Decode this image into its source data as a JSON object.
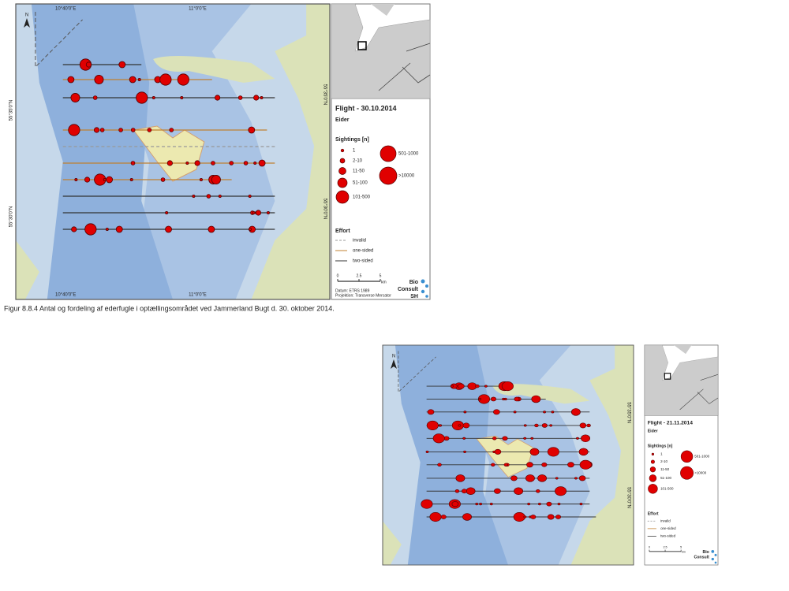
{
  "figures": [
    {
      "map": {
        "top_labels": [
          "10°40'0\"E",
          "11°0'0\"E"
        ],
        "bottom_labels": [
          "10°40'0\"E",
          "11°0'0\"E"
        ],
        "left_labels": [
          "55°35'0\"N",
          "55°30'0\"N"
        ],
        "right_labels": [
          "55°35'0\"N",
          "55°30'0\"N"
        ],
        "north": "N"
      },
      "legend": {
        "title": "Flight - 30.10.2014",
        "species": "Eider",
        "sightings_title": "Sightings [n]",
        "sizes": [
          "1",
          "2-10",
          "11-50",
          "51-100",
          "101-500",
          "501-1000",
          ">10000"
        ],
        "effort_title": "Effort",
        "effort": [
          "invalid",
          "one-sided",
          "two-sided"
        ],
        "scale": [
          "0",
          "2.5",
          "5"
        ],
        "scale_unit": "km",
        "logo": [
          "Bio",
          "Consult",
          "SH"
        ],
        "datum": "Datum: ETRS 1989",
        "projection": "Projektion: Transverse Mercator"
      },
      "caption": "Figur 8.8.4 Antal og fordeling af ederfugle i optællingsområdet ved Jammerland Bugt d. 30. oktober 2014."
    },
    {
      "map": {
        "right_labels": [
          "55°35'0\"N",
          "55°30'0\"N"
        ],
        "north": "N"
      },
      "legend": {
        "title": "Flight - 21.11.2014",
        "species": "Eider",
        "sightings_title": "Sightings [n]",
        "sizes": [
          "1",
          "2-10",
          "11-50",
          "51-100",
          "101-500",
          "501-1000",
          ">10000"
        ],
        "effort_title": "Effort",
        "effort": [
          "invalid",
          "one-sided",
          "two-sided"
        ],
        "scale": [
          "0",
          "2.5",
          "5"
        ],
        "scale_unit": "km",
        "logo": [
          "Bio",
          "Consult"
        ]
      }
    }
  ]
}
